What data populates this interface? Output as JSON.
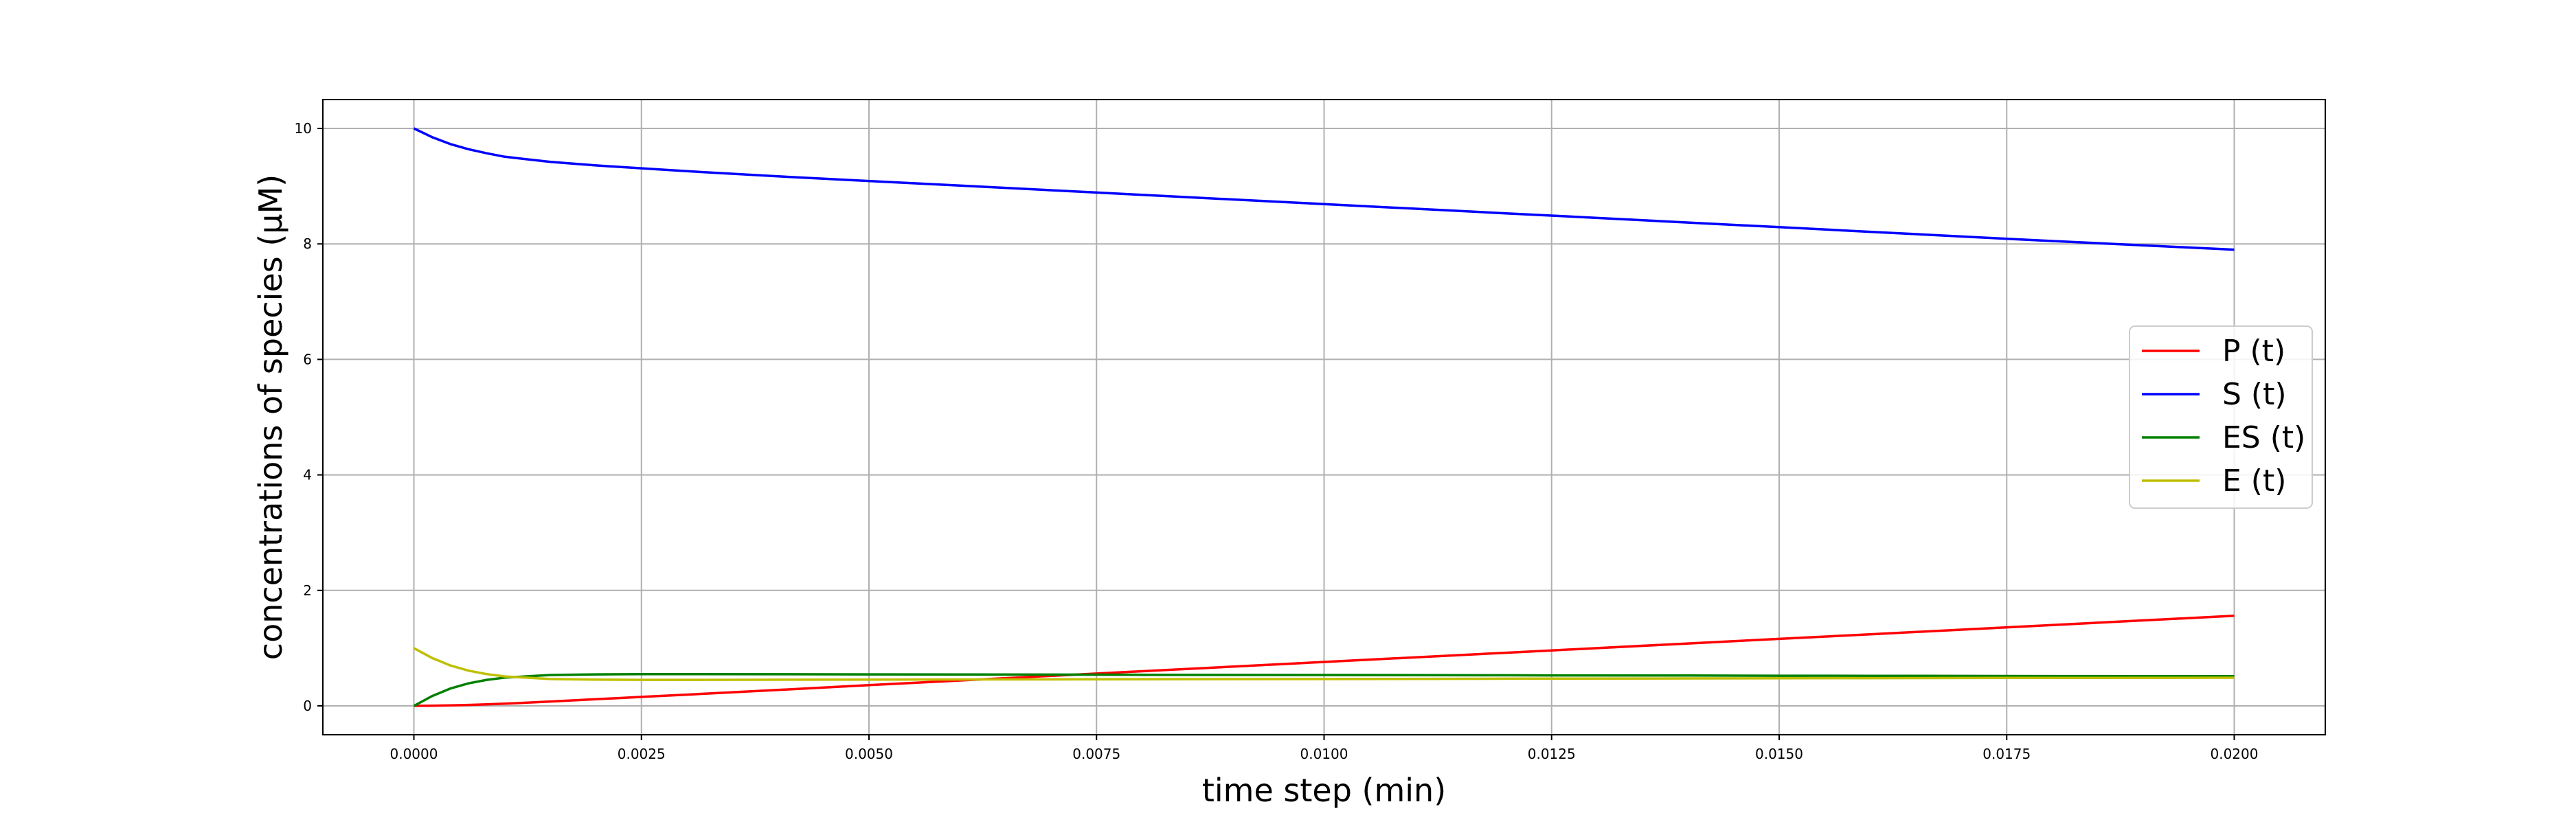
{
  "chart_data": {
    "type": "line",
    "title": "",
    "xlabel": "time step (min)",
    "ylabel": "concentrations of species (μM)",
    "xlim": [
      -0.001,
      0.021
    ],
    "ylim": [
      -0.5,
      10.5
    ],
    "xticks": [
      0.0,
      0.0025,
      0.005,
      0.0075,
      0.01,
      0.0125,
      0.015,
      0.0175,
      0.02
    ],
    "xtick_labels": [
      "0.0000",
      "0.0025",
      "0.0050",
      "0.0075",
      "0.0100",
      "0.0125",
      "0.0150",
      "0.0175",
      "0.0200"
    ],
    "yticks": [
      0,
      2,
      4,
      6,
      8,
      10
    ],
    "ytick_labels": [
      "0",
      "2",
      "4",
      "6",
      "8",
      "10"
    ],
    "grid": true,
    "legend_position": "center-right",
    "x": [
      0.0,
      0.0002,
      0.0004,
      0.0006,
      0.0008,
      0.001,
      0.0015,
      0.002,
      0.0025,
      0.003,
      0.004,
      0.005,
      0.006,
      0.0075,
      0.008,
      0.01,
      0.012,
      0.0125,
      0.014,
      0.015,
      0.016,
      0.0175,
      0.018,
      0.02
    ],
    "series": [
      {
        "name": "P (t)",
        "color": "#ff0000",
        "values": [
          0.0,
          0.002,
          0.008,
          0.016,
          0.026,
          0.037,
          0.075,
          0.115,
          0.155,
          0.195,
          0.275,
          0.36,
          0.44,
          0.56,
          0.6,
          0.76,
          0.92,
          0.96,
          1.08,
          1.16,
          1.24,
          1.36,
          1.4,
          1.56
        ]
      },
      {
        "name": "S (t)",
        "color": "#0000ff",
        "values": [
          10.0,
          9.85,
          9.73,
          9.64,
          9.57,
          9.51,
          9.42,
          9.36,
          9.31,
          9.26,
          9.17,
          9.09,
          9.01,
          8.89,
          8.85,
          8.69,
          8.53,
          8.49,
          8.37,
          8.29,
          8.21,
          8.09,
          8.05,
          7.9
        ]
      },
      {
        "name": "ES (t)",
        "color": "#008000",
        "values": [
          0.0,
          0.17,
          0.3,
          0.39,
          0.45,
          0.49,
          0.535,
          0.545,
          0.55,
          0.55,
          0.548,
          0.545,
          0.543,
          0.54,
          0.538,
          0.535,
          0.53,
          0.528,
          0.525,
          0.522,
          0.52,
          0.517,
          0.516,
          0.513
        ]
      },
      {
        "name": "E (t)",
        "color": "#bfbf00",
        "values": [
          1.0,
          0.83,
          0.7,
          0.61,
          0.55,
          0.51,
          0.465,
          0.455,
          0.45,
          0.45,
          0.452,
          0.455,
          0.457,
          0.46,
          0.462,
          0.465,
          0.47,
          0.472,
          0.475,
          0.478,
          0.48,
          0.483,
          0.484,
          0.487
        ]
      }
    ]
  }
}
